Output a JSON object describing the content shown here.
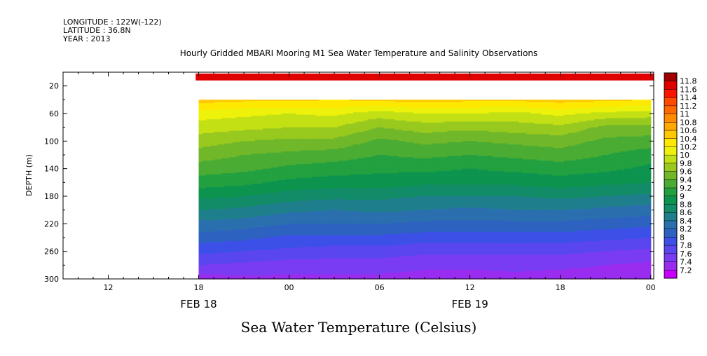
{
  "header": {
    "longitude": "LONGITUDE : 122W(-122)",
    "latitude": "LATITUDE : 36.8N",
    "year": "YEAR : 2013"
  },
  "chart_data": {
    "type": "heatmap",
    "title": "Hourly Gridded MBARI Mooring M1 Sea Water Temperature and Salinity Observations",
    "xlabel": "Sea Water Temperature (Celsius)",
    "ylabel": "DEPTH (m)",
    "x_unit": "hours from 2013-02-18 00:00",
    "xlim": [
      9,
      48.2
    ],
    "ylim": [
      300,
      0
    ],
    "y_axis_inverted": true,
    "x_ticks": [
      {
        "value": 12,
        "label": "12"
      },
      {
        "value": 18,
        "label": "18"
      },
      {
        "value": 24,
        "label": "00"
      },
      {
        "value": 30,
        "label": "06"
      },
      {
        "value": 36,
        "label": "12"
      },
      {
        "value": 42,
        "label": "18"
      },
      {
        "value": 48,
        "label": "00"
      }
    ],
    "x_date_labels": [
      {
        "value": 18,
        "label": "FEB 18"
      },
      {
        "value": 36,
        "label": "FEB 19"
      }
    ],
    "y_ticks": [
      20,
      60,
      100,
      140,
      180,
      220,
      260,
      300
    ],
    "data_start_x": 17.8,
    "surface_layer": {
      "depth_range": [
        2,
        12
      ],
      "temperature": 11.7
    },
    "missing_depth_range": [
      12,
      40
    ],
    "x_profiles": [
      18,
      21,
      24,
      27,
      30,
      33,
      36,
      39,
      42,
      45,
      48
    ],
    "profiles": [
      {
        "depth": 40,
        "values": [
          10.5,
          10.45,
          10.45,
          10.4,
          10.45,
          10.5,
          10.45,
          10.45,
          10.5,
          10.45,
          10.4
        ]
      },
      {
        "depth": 60,
        "values": [
          10.1,
          10.05,
          10.0,
          10.05,
          9.9,
          10.0,
          10.0,
          9.95,
          10.05,
          9.95,
          9.9
        ]
      },
      {
        "depth": 80,
        "values": [
          9.9,
          9.85,
          9.8,
          9.8,
          9.6,
          9.7,
          9.65,
          9.7,
          9.75,
          9.55,
          9.55
        ]
      },
      {
        "depth": 100,
        "values": [
          9.7,
          9.6,
          9.55,
          9.55,
          9.35,
          9.45,
          9.4,
          9.45,
          9.5,
          9.35,
          9.3
        ]
      },
      {
        "depth": 120,
        "values": [
          9.5,
          9.4,
          9.35,
          9.3,
          9.2,
          9.25,
          9.2,
          9.25,
          9.3,
          9.2,
          9.1
        ]
      },
      {
        "depth": 140,
        "values": [
          9.3,
          9.25,
          9.15,
          9.1,
          9.05,
          9.05,
          9.0,
          9.05,
          9.1,
          9.05,
          8.95
        ]
      },
      {
        "depth": 160,
        "values": [
          9.1,
          9.05,
          8.95,
          8.9,
          8.9,
          8.85,
          8.85,
          8.85,
          8.9,
          8.85,
          8.8
        ]
      },
      {
        "depth": 180,
        "values": [
          8.85,
          8.8,
          8.7,
          8.65,
          8.65,
          8.6,
          8.6,
          8.6,
          8.65,
          8.6,
          8.55
        ]
      },
      {
        "depth": 200,
        "values": [
          8.6,
          8.55,
          8.45,
          8.4,
          8.45,
          8.4,
          8.35,
          8.4,
          8.4,
          8.35,
          8.3
        ]
      },
      {
        "depth": 220,
        "values": [
          8.35,
          8.3,
          8.2,
          8.2,
          8.2,
          8.15,
          8.15,
          8.15,
          8.15,
          8.1,
          8.05
        ]
      },
      {
        "depth": 240,
        "values": [
          8.1,
          8.05,
          7.95,
          7.95,
          7.95,
          7.9,
          7.9,
          7.9,
          7.9,
          7.85,
          7.8
        ]
      },
      {
        "depth": 260,
        "values": [
          7.85,
          7.8,
          7.75,
          7.7,
          7.7,
          7.65,
          7.65,
          7.65,
          7.65,
          7.6,
          7.55
        ]
      },
      {
        "depth": 280,
        "values": [
          7.6,
          7.55,
          7.5,
          7.5,
          7.5,
          7.45,
          7.45,
          7.45,
          7.45,
          7.4,
          7.35
        ]
      },
      {
        "depth": 300,
        "values": [
          7.3,
          7.35,
          7.35,
          7.35,
          7.35,
          7.3,
          7.3,
          7.35,
          7.3,
          7.3,
          7.25
        ]
      }
    ],
    "colorbar": {
      "levels": [
        "7.2",
        "7.4",
        "7.6",
        "7.8",
        "8",
        "8.2",
        "8.4",
        "8.6",
        "8.8",
        "9",
        "9.2",
        "9.4",
        "9.6",
        "9.8",
        "10",
        "10.2",
        "10.4",
        "10.6",
        "10.8",
        "11",
        "11.2",
        "11.4",
        "11.6",
        "11.8"
      ],
      "colors": [
        "#c800ff",
        "#9a2cf0",
        "#7a3cf2",
        "#5a46ef",
        "#3c50e8",
        "#2e62c0",
        "#2a6fae",
        "#1f7f8c",
        "#138c68",
        "#0d944f",
        "#23a040",
        "#4aac33",
        "#70b82a",
        "#98c91e",
        "#c3e015",
        "#eef20a",
        "#ffe800",
        "#ffc800",
        "#ffa800",
        "#ff8c00",
        "#ff6a00",
        "#ff4a00",
        "#ff1400",
        "#e00000",
        "#a00000"
      ]
    }
  }
}
